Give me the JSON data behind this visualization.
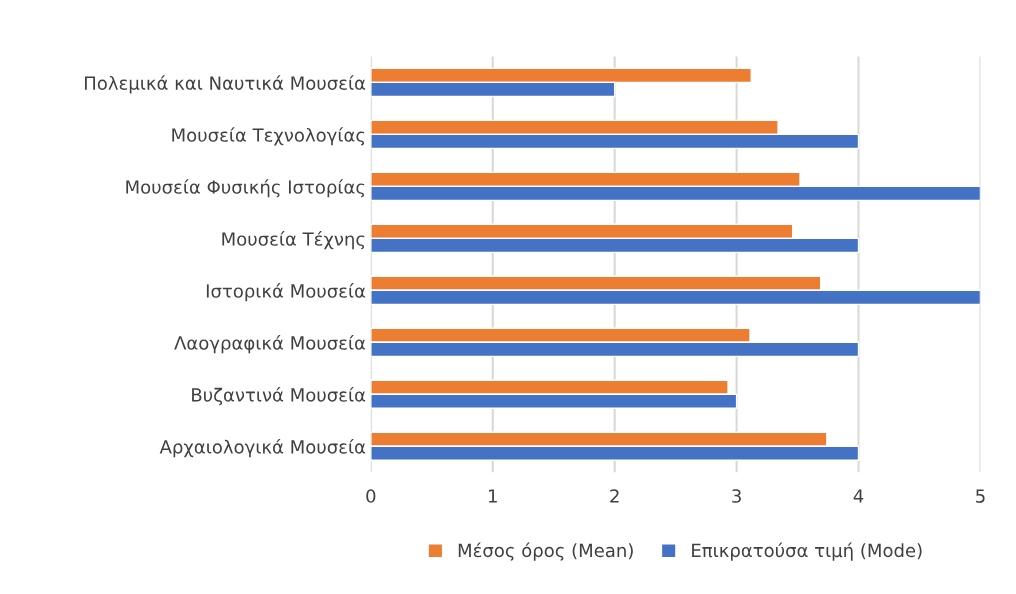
{
  "chart_data": {
    "type": "bar",
    "orientation": "horizontal",
    "categories": [
      "Πολεμικά και Ναυτικά Μουσεία",
      "Μουσεία Τεχνολογίας",
      "Μουσεία Φυσικής Ιστορίας",
      "Μουσεία Τέχνης",
      "Ιστορικά Μουσεία",
      "Λαογραφικά Μουσεία",
      "Βυζαντινά Μουσεία",
      "Αρχαιολογικά Μουσεία"
    ],
    "series": [
      {
        "name": "Μέσος όρος (Mean)",
        "color": "#ed7d31",
        "values": [
          3.12,
          3.34,
          3.52,
          3.46,
          3.69,
          3.11,
          2.93,
          3.74
        ]
      },
      {
        "name": "Επικρατούσα τιμή (Mode)",
        "color": "#4472c4",
        "values": [
          2,
          4,
          5,
          4,
          5,
          4,
          3,
          4
        ]
      }
    ],
    "xlim": [
      0,
      5
    ],
    "xticks": [
      0,
      1,
      2,
      3,
      4,
      5
    ],
    "grid": "x",
    "legend": "bottom"
  }
}
